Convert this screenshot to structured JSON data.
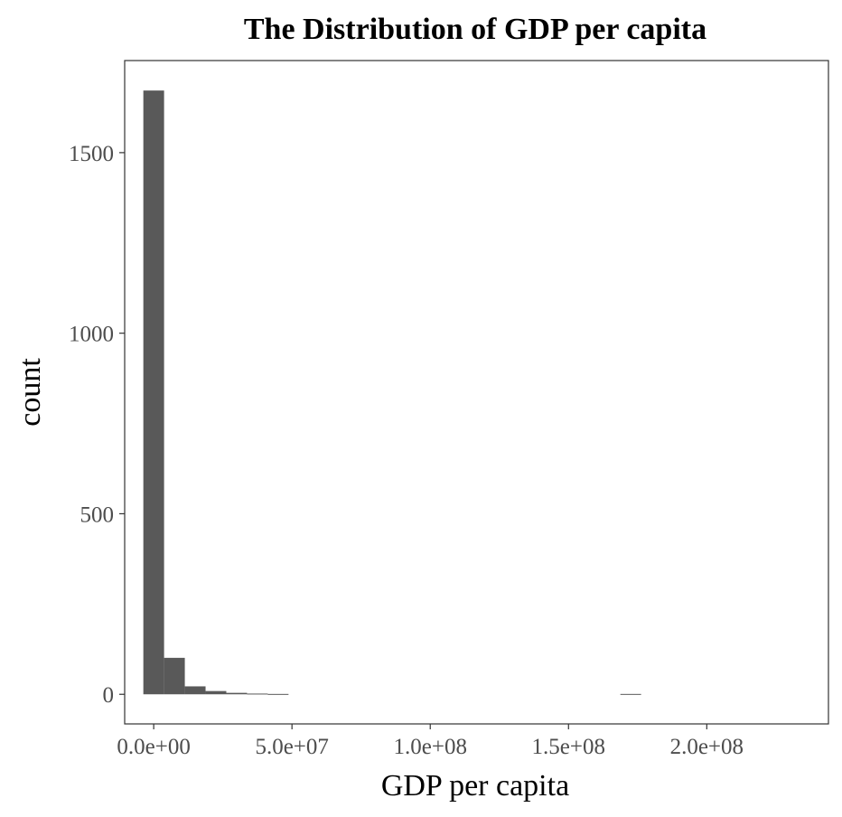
{
  "chart_data": {
    "type": "bar",
    "title": "The Distribution of GDP per capita",
    "xlabel": "GDP per capita",
    "ylabel": "count",
    "bin_width": 7500000,
    "bins": [
      {
        "x_start": -3750000,
        "x_end": 3750000,
        "count": 1672
      },
      {
        "x_start": 3750000,
        "x_end": 11250000,
        "count": 101
      },
      {
        "x_start": 11250000,
        "x_end": 18750000,
        "count": 22
      },
      {
        "x_start": 18750000,
        "x_end": 26250000,
        "count": 9
      },
      {
        "x_start": 26250000,
        "x_end": 33750000,
        "count": 4
      },
      {
        "x_start": 33750000,
        "x_end": 41250000,
        "count": 2
      },
      {
        "x_start": 41250000,
        "x_end": 48750000,
        "count": 1
      },
      {
        "x_start": 168750000,
        "x_end": 176250000,
        "count": 1
      }
    ],
    "x_ticks": [
      {
        "value": 0,
        "label": "0.0e+00"
      },
      {
        "value": 50000000,
        "label": "5.0e+07"
      },
      {
        "value": 100000000,
        "label": "1.0e+08"
      },
      {
        "value": 150000000,
        "label": "1.5e+08"
      },
      {
        "value": 200000000,
        "label": "2.0e+08"
      }
    ],
    "y_ticks": [
      {
        "value": 0,
        "label": "0"
      },
      {
        "value": 500,
        "label": "500"
      },
      {
        "value": 1000,
        "label": "1000"
      },
      {
        "value": 1500,
        "label": "1500"
      }
    ],
    "xlim": [
      -10500000,
      244000000
    ],
    "ylim": [
      -82,
      1755
    ],
    "bar_color": "#595959",
    "grid": false,
    "legend": "none"
  }
}
